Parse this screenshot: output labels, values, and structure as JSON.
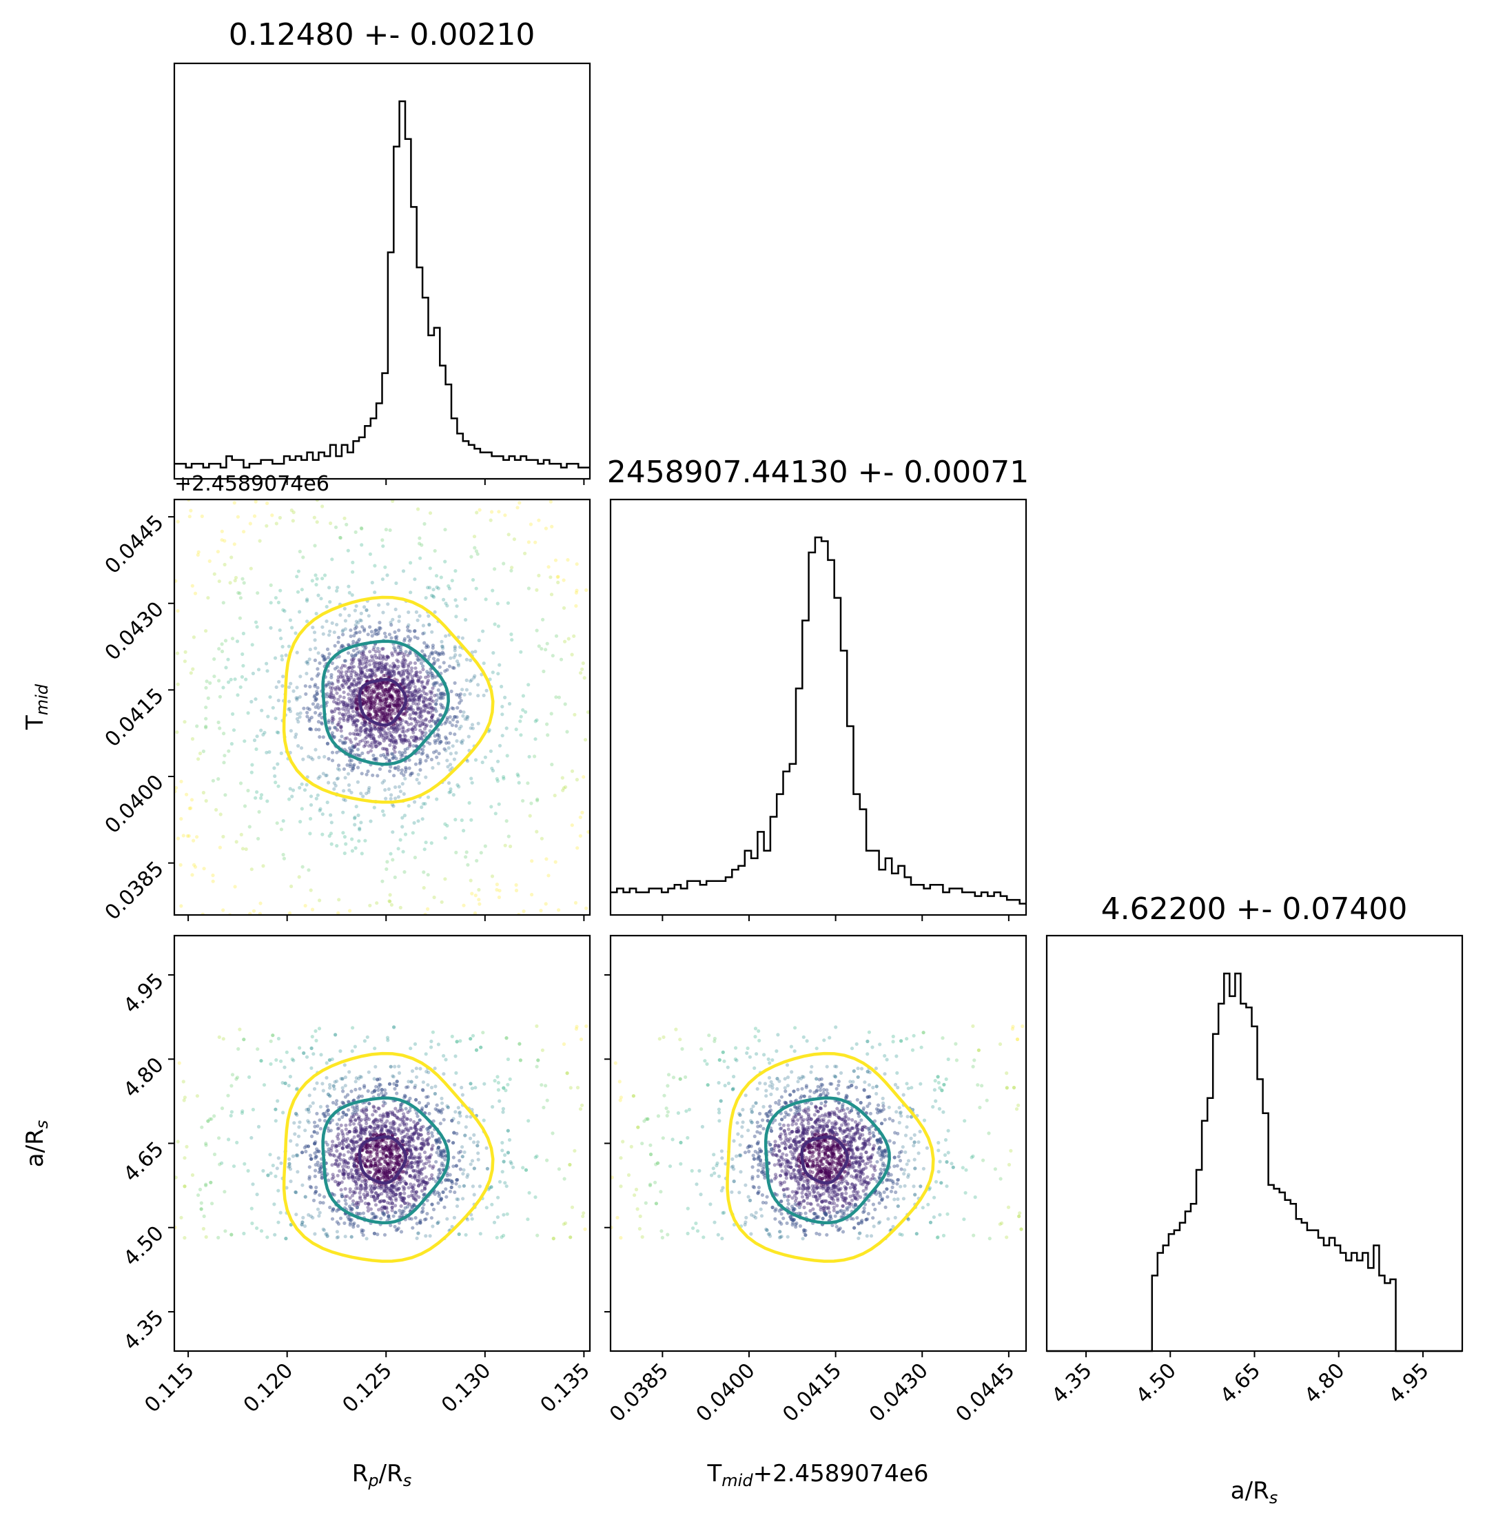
{
  "chart_data": {
    "type": "corner",
    "parameters": [
      {
        "name": "R_p/R_s",
        "axis_label": "Rp/Rs",
        "sub": "p",
        "sub2": "s",
        "title": "0.12480 +- 0.00210",
        "median": 0.1248,
        "sigma": 0.0021,
        "range": [
          0.1143,
          0.1353
        ],
        "ticks": [
          "0.115",
          "0.120",
          "0.125",
          "0.130",
          "0.135"
        ]
      },
      {
        "name": "T_mid",
        "axis_label": "T",
        "sub": "mid",
        "title": "2458907.44130 +- 0.00071",
        "median": 0.0413,
        "sigma": 0.00071,
        "offset_label": "+2.4589074e6",
        "x_axis_label_suffix": "+2.4589074e6",
        "range": [
          0.0376,
          0.0448
        ],
        "ticks": [
          "0.0385",
          "0.0400",
          "0.0415",
          "0.0430",
          "0.0445"
        ]
      },
      {
        "name": "a/R_s",
        "axis_label": "a/Rs",
        "sub": "s",
        "title": "4.62200 +- 0.07400",
        "median": 4.622,
        "sigma": 0.074,
        "range": [
          4.28,
          5.02
        ],
        "ticks": [
          "4.35",
          "4.50",
          "4.65",
          "4.80",
          "4.95"
        ]
      }
    ],
    "histograms": {
      "R_p/R_s": {
        "x_start": 0.1143,
        "x_end": 0.1353,
        "counts": [
          4,
          4,
          3,
          4,
          4,
          3,
          4,
          4,
          3,
          6,
          5,
          5,
          3,
          4,
          4,
          5,
          5,
          4,
          4,
          6,
          5,
          6,
          5,
          7,
          5,
          7,
          6,
          9,
          6,
          9,
          7,
          10,
          11,
          14,
          16,
          20,
          28,
          60,
          88,
          100,
          90,
          72,
          56,
          48,
          38,
          40,
          30,
          25,
          16,
          12,
          10,
          9,
          8,
          7,
          7,
          6,
          6,
          5,
          6,
          5,
          6,
          5,
          5,
          4,
          5,
          4,
          4,
          3,
          4,
          4,
          3,
          3
        ]
      },
      "T_mid": {
        "x_start": 0.0376,
        "x_end": 0.0448,
        "counts": [
          6,
          7,
          6,
          7,
          6,
          6,
          7,
          7,
          6,
          7,
          8,
          7,
          9,
          9,
          8,
          9,
          9,
          9,
          10,
          12,
          13,
          17,
          15,
          22,
          17,
          26,
          32,
          38,
          40,
          60,
          78,
          96,
          100,
          99,
          94,
          84,
          70,
          50,
          32,
          28,
          17,
          17,
          12,
          15,
          11,
          13,
          10,
          8,
          8,
          7,
          8,
          8,
          6,
          7,
          7,
          6,
          6,
          5,
          6,
          5,
          6,
          5,
          4,
          4,
          3
        ]
      },
      "a/R_s": {
        "x_start": 4.28,
        "x_end": 5.02,
        "counts": [
          0,
          0,
          0,
          0,
          0,
          0,
          0,
          0,
          0,
          0,
          0,
          0,
          0,
          0,
          0,
          0,
          0,
          0,
          0,
          20,
          26,
          28,
          31,
          32,
          34,
          37,
          39,
          48,
          61,
          67,
          84,
          92,
          100,
          94,
          100,
          92,
          91,
          86,
          72,
          63,
          44,
          43,
          42,
          40,
          39,
          35,
          34,
          32,
          32,
          30,
          28,
          30,
          28,
          26,
          24,
          26,
          24,
          26,
          22,
          28,
          20,
          18,
          19,
          0,
          0,
          0,
          0,
          0,
          0,
          0,
          0,
          0,
          0,
          0,
          0
        ]
      }
    },
    "contours": [
      {
        "level": "0.5 sigma",
        "color": "#472c7a"
      },
      {
        "level": "1.5 sigma",
        "color": "#21918c"
      },
      {
        "level": "2.5 sigma",
        "color": "#fde725"
      }
    ],
    "scatter": {
      "colormap": "viridis",
      "a/R_s_prior_range": [
        4.48,
        4.86
      ]
    }
  }
}
